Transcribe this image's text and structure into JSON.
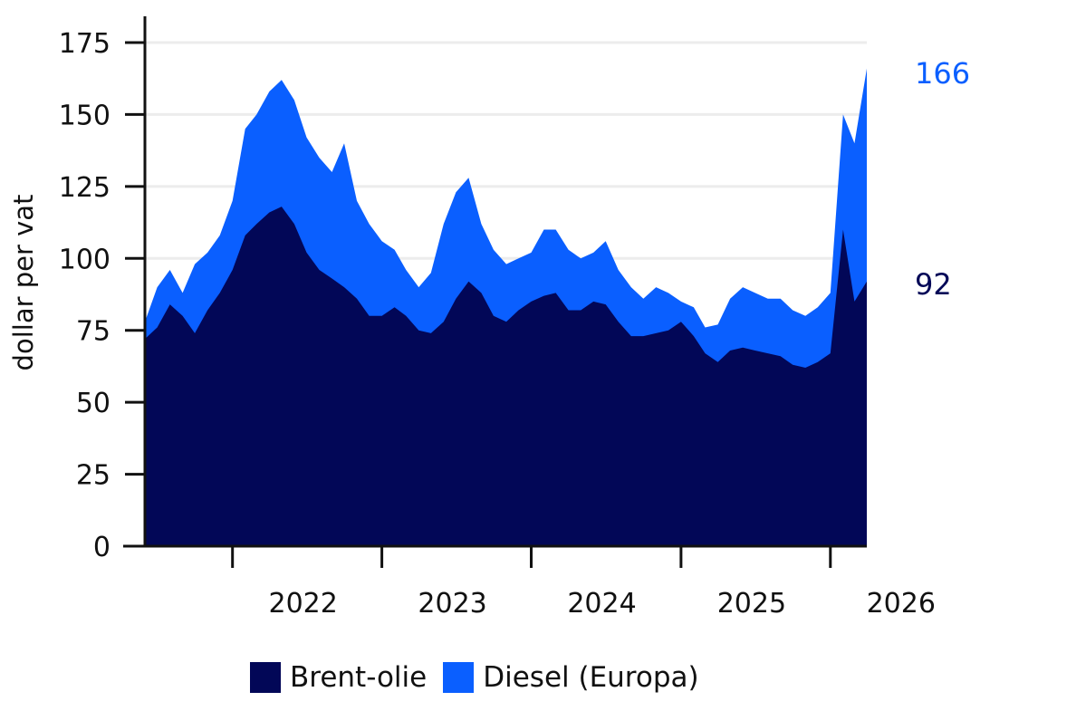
{
  "chart_data": {
    "type": "area",
    "stacked": false,
    "ylabel": "dollar per vat",
    "xlabel": "",
    "ylim": [
      0,
      175
    ],
    "yticks": [
      0,
      25,
      50,
      75,
      100,
      125,
      150,
      175
    ],
    "yticks_labels": [
      "0",
      "25",
      "50",
      "75",
      "100",
      "125",
      "150",
      "175"
    ],
    "xlim": [
      "2021-06-01",
      "2026-03-31"
    ],
    "x_tick_positions": [
      "2022-01-01",
      "2023-01-01",
      "2024-01-01",
      "2025-01-01",
      "2026-01-01"
    ],
    "x_tick_labels": [
      "2022",
      "2023",
      "2024",
      "2025",
      "2026"
    ],
    "grid": "horizontal",
    "legend_position": "bottom",
    "x": [
      "2021-06-01",
      "2021-07-01",
      "2021-08-01",
      "2021-09-01",
      "2021-10-01",
      "2021-11-01",
      "2021-12-01",
      "2022-01-01",
      "2022-02-01",
      "2022-03-01",
      "2022-04-01",
      "2022-05-01",
      "2022-06-01",
      "2022-07-01",
      "2022-08-01",
      "2022-09-01",
      "2022-10-01",
      "2022-11-01",
      "2022-12-01",
      "2023-01-01",
      "2023-02-01",
      "2023-03-01",
      "2023-04-01",
      "2023-05-01",
      "2023-06-01",
      "2023-07-01",
      "2023-08-01",
      "2023-09-01",
      "2023-10-01",
      "2023-11-01",
      "2023-12-01",
      "2024-01-01",
      "2024-02-01",
      "2024-03-01",
      "2024-04-01",
      "2024-05-01",
      "2024-06-01",
      "2024-07-01",
      "2024-08-01",
      "2024-09-01",
      "2024-10-01",
      "2024-11-01",
      "2024-12-01",
      "2025-01-01",
      "2025-02-01",
      "2025-03-01",
      "2025-04-01",
      "2025-05-01",
      "2025-06-01",
      "2025-07-01",
      "2025-08-01",
      "2025-09-01",
      "2025-10-01",
      "2025-11-01",
      "2025-12-01",
      "2026-01-01",
      "2026-02-01",
      "2026-03-01",
      "2026-03-31"
    ],
    "series": [
      {
        "name": "Diesel (Europa)",
        "color": "#0a5fff",
        "end_label": "166",
        "values": [
          78,
          90,
          96,
          88,
          98,
          102,
          108,
          120,
          145,
          150,
          158,
          162,
          155,
          142,
          135,
          130,
          140,
          120,
          112,
          106,
          103,
          96,
          90,
          95,
          112,
          123,
          128,
          112,
          103,
          98,
          100,
          102,
          110,
          110,
          103,
          100,
          102,
          106,
          96,
          90,
          86,
          90,
          88,
          85,
          83,
          76,
          77,
          86,
          90,
          88,
          86,
          86,
          82,
          80,
          83,
          88,
          150,
          140,
          166
        ]
      },
      {
        "name": "Brent-olie",
        "color": "#020757",
        "end_label": "92",
        "values": [
          72,
          76,
          84,
          80,
          74,
          82,
          88,
          96,
          108,
          112,
          116,
          118,
          112,
          102,
          96,
          93,
          90,
          86,
          80,
          80,
          83,
          80,
          75,
          74,
          78,
          86,
          92,
          88,
          80,
          78,
          82,
          85,
          87,
          88,
          82,
          82,
          85,
          84,
          78,
          73,
          73,
          74,
          75,
          78,
          73,
          67,
          64,
          68,
          69,
          68,
          67,
          66,
          63,
          62,
          64,
          67,
          110,
          85,
          92
        ]
      }
    ]
  }
}
